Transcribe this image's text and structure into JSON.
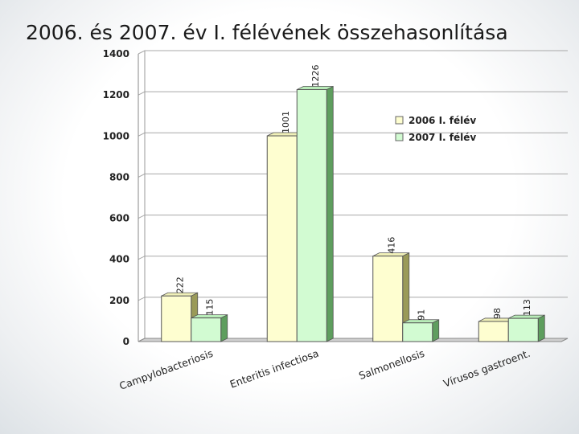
{
  "slide": {
    "title": "2006. és 2007. év I. félévének összehasonlítása"
  },
  "chart_data": {
    "type": "bar",
    "categories": [
      "Campylobacteriosis",
      "Enteritis infectiosa",
      "Salmonellosis",
      "Vírusos gastroent."
    ],
    "series": [
      {
        "name": "2006 I. félév",
        "values": [
          222,
          1001,
          416,
          98
        ],
        "color": "#fefed0"
      },
      {
        "name": "2007 I. félév",
        "values": [
          115,
          1226,
          91,
          113
        ],
        "color": "#d2fbd2"
      }
    ],
    "ylim": [
      0,
      1400
    ],
    "yticks": [
      0,
      200,
      400,
      600,
      800,
      1000,
      1200,
      1400
    ],
    "grid": true,
    "legend": "right",
    "title": "",
    "xlabel": "",
    "ylabel": ""
  }
}
